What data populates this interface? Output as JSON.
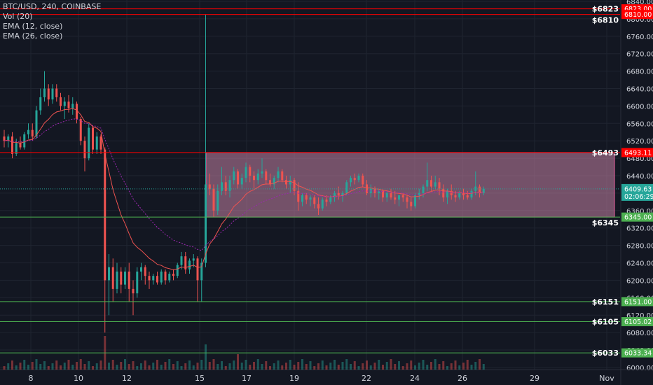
{
  "legend": {
    "symbol": "BTC/USD, 240, COINBASE",
    "volume": "Vol (20)",
    "ema_fast": "EMA (12, close)",
    "ema_slow": "EMA (26, close)"
  },
  "colors": {
    "background": "#131722",
    "grid": "#1f2430",
    "axis_text": "#d1d4dc",
    "up": "#26a69a",
    "down": "#ef5350",
    "ema_fast": "#ef5350",
    "ema_slow": "#9c27b0",
    "resistance": "#ff0000",
    "support": "#4caf50",
    "range_box": "#d58bb0"
  },
  "chart_data": {
    "type": "candlestick",
    "y_axis": {
      "range": [
        5995,
        6840
      ],
      "ticks": [
        6000,
        6040,
        6080,
        6120,
        6160,
        6200,
        6240,
        6280,
        6320,
        6360,
        6400,
        6440,
        6480,
        6520,
        6560,
        6600,
        6640,
        6680,
        6720,
        6760,
        6800,
        6840
      ]
    },
    "x_axis": {
      "ticks": [
        "8",
        "10",
        "12",
        "15",
        "17",
        "19",
        "22",
        "24",
        "26",
        "29",
        "Nov"
      ]
    },
    "current_price": "6409.63",
    "countdown": "02:06:29",
    "horizontal_lines": [
      {
        "value": 6823.0,
        "label": "6823.00",
        "note": "$6823",
        "kind": "resistance"
      },
      {
        "value": 6810.0,
        "label": "6810.00",
        "note": "$6810",
        "kind": "resistance"
      },
      {
        "value": 6493.11,
        "label": "6493.11",
        "note": "$6493",
        "kind": "resistance"
      },
      {
        "value": 6345.0,
        "label": "6345.00",
        "note": "$6345",
        "kind": "support"
      },
      {
        "value": 6151.0,
        "label": "6151.00",
        "note": "$6151",
        "kind": "support"
      },
      {
        "value": 6105.02,
        "label": "6105.02",
        "note": "$6105",
        "kind": "support"
      },
      {
        "value": 6033.34,
        "label": "6033.34",
        "note": "$6033",
        "kind": "support"
      }
    ],
    "range_box": {
      "top": 6493.11,
      "bottom": 6345.0
    },
    "series": [
      {
        "name": "BTC/USD",
        "ohlc": [
          [
            6530,
            6545,
            6505,
            6520
          ],
          [
            6520,
            6535,
            6505,
            6530
          ],
          [
            6530,
            6540,
            6480,
            6490
          ],
          [
            6490,
            6525,
            6485,
            6515
          ],
          [
            6515,
            6530,
            6500,
            6505
          ],
          [
            6505,
            6540,
            6500,
            6535
          ],
          [
            6535,
            6560,
            6525,
            6545
          ],
          [
            6545,
            6560,
            6520,
            6530
          ],
          [
            6530,
            6600,
            6525,
            6590
          ],
          [
            6590,
            6640,
            6580,
            6620
          ],
          [
            6620,
            6680,
            6610,
            6640
          ],
          [
            6640,
            6650,
            6600,
            6615
          ],
          [
            6615,
            6650,
            6605,
            6640
          ],
          [
            6640,
            6650,
            6610,
            6620
          ],
          [
            6620,
            6630,
            6590,
            6600
          ],
          [
            6600,
            6620,
            6570,
            6610
          ],
          [
            6610,
            6625,
            6585,
            6595
          ],
          [
            6595,
            6620,
            6580,
            6605
          ],
          [
            6605,
            6610,
            6560,
            6570
          ],
          [
            6570,
            6575,
            6510,
            6520
          ],
          [
            6520,
            6530,
            6450,
            6480
          ],
          [
            6480,
            6560,
            6475,
            6550
          ],
          [
            6550,
            6555,
            6490,
            6500
          ],
          [
            6500,
            6540,
            6490,
            6530
          ],
          [
            6530,
            6535,
            6490,
            6500
          ],
          [
            6500,
            6505,
            6080,
            6200
          ],
          [
            6200,
            6260,
            6120,
            6230
          ],
          [
            6230,
            6250,
            6150,
            6180
          ],
          [
            6180,
            6240,
            6170,
            6220
          ],
          [
            6220,
            6230,
            6170,
            6190
          ],
          [
            6190,
            6230,
            6180,
            6220
          ],
          [
            6220,
            6240,
            6150,
            6180
          ],
          [
            6180,
            6200,
            6120,
            6170
          ],
          [
            6170,
            6230,
            6160,
            6220
          ],
          [
            6220,
            6240,
            6200,
            6230
          ],
          [
            6230,
            6235,
            6190,
            6210
          ],
          [
            6210,
            6220,
            6180,
            6200
          ],
          [
            6200,
            6215,
            6190,
            6210
          ],
          [
            6210,
            6220,
            6190,
            6195
          ],
          [
            6195,
            6225,
            6190,
            6220
          ],
          [
            6220,
            6225,
            6190,
            6200
          ],
          [
            6200,
            6220,
            6195,
            6215
          ],
          [
            6215,
            6225,
            6200,
            6210
          ],
          [
            6210,
            6240,
            6205,
            6235
          ],
          [
            6235,
            6265,
            6225,
            6255
          ],
          [
            6255,
            6265,
            6215,
            6225
          ],
          [
            6225,
            6250,
            6215,
            6245
          ],
          [
            6245,
            6260,
            6230,
            6250
          ],
          [
            6250,
            6255,
            6150,
            6200
          ],
          [
            6200,
            6250,
            6150,
            6240
          ],
          [
            6240,
            6810,
            6230,
            6420
          ],
          [
            6420,
            6445,
            6395,
            6410
          ],
          [
            6410,
            6420,
            6345,
            6360
          ],
          [
            6360,
            6420,
            6350,
            6405
          ],
          [
            6405,
            6460,
            6395,
            6425
          ],
          [
            6425,
            6440,
            6395,
            6405
          ],
          [
            6405,
            6440,
            6390,
            6430
          ],
          [
            6430,
            6460,
            6420,
            6450
          ],
          [
            6450,
            6455,
            6410,
            6420
          ],
          [
            6420,
            6445,
            6410,
            6435
          ],
          [
            6435,
            6470,
            6425,
            6460
          ],
          [
            6460,
            6465,
            6425,
            6440
          ],
          [
            6440,
            6450,
            6410,
            6430
          ],
          [
            6430,
            6455,
            6420,
            6445
          ],
          [
            6445,
            6480,
            6435,
            6450
          ],
          [
            6450,
            6455,
            6420,
            6430
          ],
          [
            6430,
            6445,
            6415,
            6420
          ],
          [
            6420,
            6440,
            6410,
            6435
          ],
          [
            6435,
            6460,
            6425,
            6450
          ],
          [
            6450,
            6455,
            6425,
            6430
          ],
          [
            6430,
            6440,
            6410,
            6420
          ],
          [
            6420,
            6440,
            6400,
            6430
          ],
          [
            6430,
            6435,
            6395,
            6405
          ],
          [
            6405,
            6425,
            6360,
            6380
          ],
          [
            6380,
            6400,
            6370,
            6395
          ],
          [
            6395,
            6400,
            6375,
            6385
          ],
          [
            6385,
            6395,
            6370,
            6390
          ],
          [
            6390,
            6395,
            6365,
            6375
          ],
          [
            6375,
            6390,
            6350,
            6365
          ],
          [
            6365,
            6390,
            6360,
            6385
          ],
          [
            6385,
            6395,
            6370,
            6380
          ],
          [
            6380,
            6395,
            6375,
            6390
          ],
          [
            6390,
            6405,
            6380,
            6400
          ],
          [
            6400,
            6415,
            6385,
            6395
          ],
          [
            6395,
            6405,
            6380,
            6400
          ],
          [
            6400,
            6430,
            6395,
            6425
          ],
          [
            6425,
            6440,
            6415,
            6435
          ],
          [
            6435,
            6445,
            6420,
            6430
          ],
          [
            6430,
            6445,
            6425,
            6440
          ],
          [
            6440,
            6445,
            6415,
            6420
          ],
          [
            6420,
            6430,
            6395,
            6400
          ],
          [
            6400,
            6420,
            6390,
            6410
          ],
          [
            6410,
            6415,
            6390,
            6400
          ],
          [
            6400,
            6410,
            6385,
            6405
          ],
          [
            6405,
            6410,
            6380,
            6390
          ],
          [
            6390,
            6405,
            6380,
            6400
          ],
          [
            6400,
            6410,
            6385,
            6390
          ],
          [
            6390,
            6405,
            6375,
            6385
          ],
          [
            6385,
            6395,
            6370,
            6395
          ],
          [
            6395,
            6400,
            6380,
            6390
          ],
          [
            6390,
            6395,
            6365,
            6380
          ],
          [
            6380,
            6390,
            6360,
            6370
          ],
          [
            6370,
            6400,
            6365,
            6395
          ],
          [
            6395,
            6410,
            6385,
            6400
          ],
          [
            6400,
            6420,
            6390,
            6415
          ],
          [
            6415,
            6470,
            6405,
            6430
          ],
          [
            6430,
            6440,
            6405,
            6415
          ],
          [
            6415,
            6440,
            6410,
            6425
          ],
          [
            6425,
            6435,
            6395,
            6410
          ],
          [
            6410,
            6420,
            6380,
            6390
          ],
          [
            6390,
            6410,
            6375,
            6405
          ],
          [
            6405,
            6420,
            6385,
            6395
          ],
          [
            6395,
            6405,
            6380,
            6390
          ],
          [
            6390,
            6405,
            6385,
            6400
          ],
          [
            6400,
            6410,
            6385,
            6395
          ],
          [
            6395,
            6405,
            6385,
            6390
          ],
          [
            6390,
            6410,
            6385,
            6405
          ],
          [
            6405,
            6450,
            6395,
            6415
          ],
          [
            6415,
            6420,
            6390,
            6400
          ],
          [
            6400,
            6415,
            6395,
            6410
          ]
        ]
      }
    ]
  }
}
